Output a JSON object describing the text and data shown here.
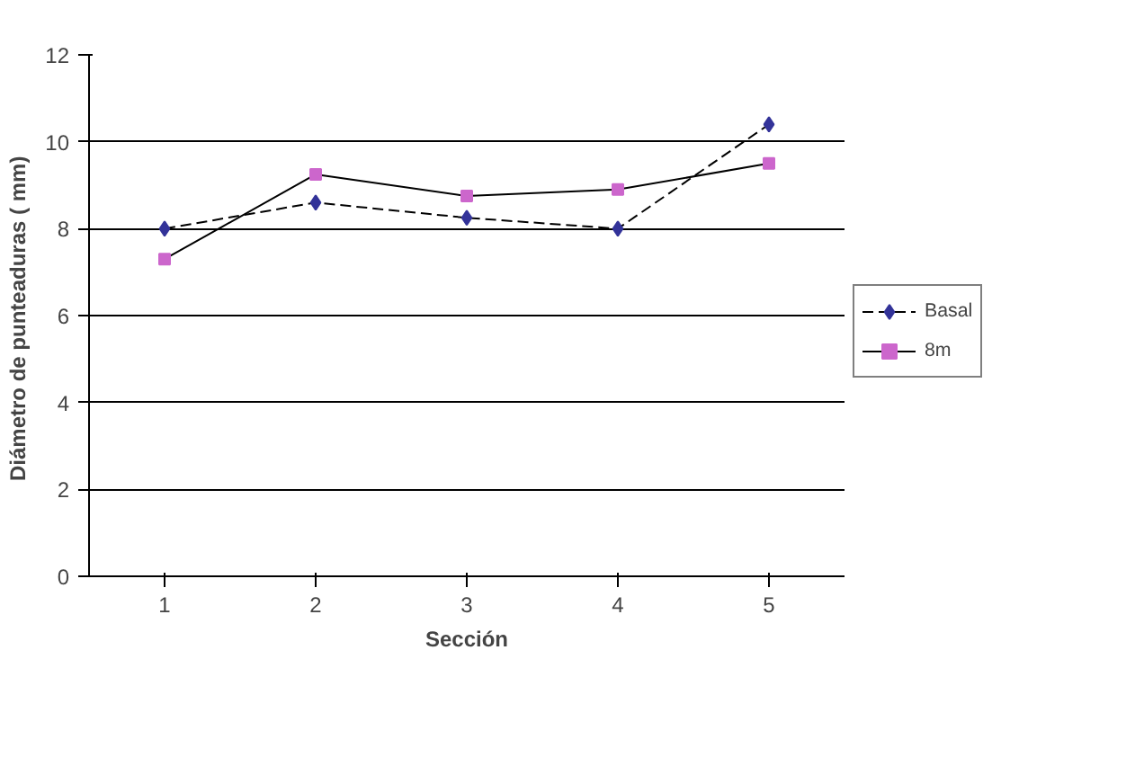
{
  "chart_data": {
    "type": "line",
    "xlabel": "Sección",
    "ylabel": "Diámetro de punteaduras (  mm)",
    "categories": [
      "1",
      "2",
      "3",
      "4",
      "5"
    ],
    "series": [
      {
        "name": "Basal",
        "color": "#333399",
        "marker": "diamond",
        "line_style": "dashed",
        "values": [
          8.0,
          8.6,
          8.25,
          8.0,
          10.4
        ]
      },
      {
        "name": "8m",
        "color": "#cc66cc",
        "marker": "square",
        "line_style": "solid",
        "values": [
          7.3,
          9.25,
          8.75,
          8.9,
          9.5
        ]
      }
    ],
    "ylim": [
      0,
      12
    ],
    "yticks": [
      0,
      2,
      4,
      6,
      8,
      10,
      12
    ],
    "grid": "y",
    "legend": "right"
  }
}
